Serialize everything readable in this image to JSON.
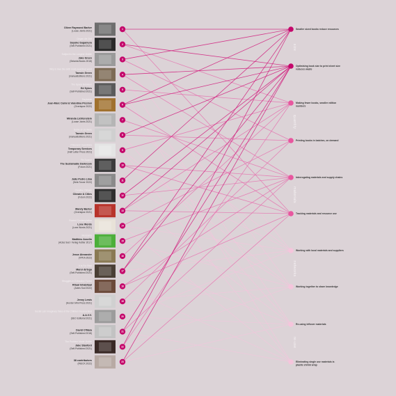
{
  "colors": {
    "background": "#dcd3d7",
    "edge_strong": "#d11e7d",
    "edge_medium": "#e575b0",
    "edge_light": "#f2c6dc",
    "node_dark": "#c4086b",
    "node_mid": "#e8579f",
    "node_light": "#f5c5dc"
  },
  "books": [
    {
      "n": "1",
      "author": "Oliver Raymond Barker",
      "pub": "(Loose Joints 2021)",
      "title": "",
      "img": "#6e6e6e"
    },
    {
      "n": "2",
      "author": "Soyoko Sugamura",
      "pub": "(Self-Published 2021)",
      "title": "Gegen die Zeit",
      "img": "#2a2a2a"
    },
    {
      "n": "3",
      "author": "Jake Green",
      "pub": "(Setanta Books 2018)",
      "title": "Subject to the Longest Visible",
      "img": "#9a9a9a"
    },
    {
      "n": "4",
      "author": "Tamsin Green",
      "pub": "(manualEditions 2021)",
      "title": "Why is love the sixth most-searched word",
      "img": "#7d6b55"
    },
    {
      "n": "5",
      "author": "Ed Sykes",
      "pub": "(Self-Published 2021)",
      "title": "The Space Between",
      "img": "#5a5a5a"
    },
    {
      "n": "6",
      "author": "Jean-Marc Caimi & Valentina Piccinni",
      "pub": "(Overlapse 2022)",
      "title": "Daybreak",
      "img": "#a0712e"
    },
    {
      "n": "7",
      "author": "Miranda Lichtenstein",
      "pub": "(Loose Joints 2021)",
      "title": "",
      "img": "#b5b5b5"
    },
    {
      "n": "8",
      "author": "Tamsin Green",
      "pub": "(manualEditions 2021)",
      "title": "Some of Us Were",
      "img": "#cfcfcf"
    },
    {
      "n": "9",
      "author": "Temporary Services",
      "pub": "(Half Letter Press 2021)",
      "title": "Prisoners' Inventions",
      "img": "#e4e4e4"
    },
    {
      "n": "10",
      "author": "The Sustainable Darkroom",
      "pub": "(Fotum 2021)",
      "title": "Re-Source",
      "img": "#3c3c3c"
    },
    {
      "n": "11",
      "author": "João Pedro Lima",
      "pub": "(Setà Torcer 2022)",
      "title": "",
      "img": "#8a8a8a"
    },
    {
      "n": "12",
      "author": "Climate & Cities",
      "pub": "(Fotum 2022)",
      "title": "Creative Climate",
      "img": "#2f2f2f"
    },
    {
      "n": "13",
      "author": "Mandy Barker",
      "pub": "(Overlapse 2021)",
      "title": "",
      "img": "#b8332b"
    },
    {
      "n": "14",
      "author": "Lone Words",
      "pub": "(Lone Words 2021)",
      "title": "Rooted Contemplation",
      "img": "#e8e2d8"
    },
    {
      "n": "15",
      "author": "Matthieu Asselin",
      "pub": "(Actes Sud / Verlag Kettler 2017)",
      "title": "Monsanto",
      "img": "#4caf3a"
    },
    {
      "n": "16",
      "author": "Jesse Alexander",
      "pub": "(VPKA 2022)",
      "title": "",
      "img": "#8a7a54"
    },
    {
      "n": "17",
      "author": "Maren Ertega",
      "pub": "(Self-Published 2021)",
      "title": "It is For Real",
      "img": "#4a3f35"
    },
    {
      "n": "18",
      "author": "Ritual Inhabitual",
      "pub": "(Actes Sud 2022)",
      "title": "Struggles in Extractive Forest",
      "img": "#6b4a3a"
    },
    {
      "n": "19",
      "author": "Jenny Lewis",
      "pub": "(Hoxton Mini Press 2021)",
      "title": "",
      "img": "#d0d0d0"
    },
    {
      "n": "20",
      "author": "A.A.V.V.",
      "pub": "(SEO Editorial 2021)",
      "title": "Social Lab: Imaginary Tales of the Children Incarcerated",
      "img": "#9c9c9c"
    },
    {
      "n": "21",
      "author": "David O'Mara",
      "pub": "(Self-Published 2018)",
      "title": "",
      "img": "#c2c2c2"
    },
    {
      "n": "22",
      "author": "Jake Stanford",
      "pub": "(Self-Published 2021)",
      "title": "The Problem Made Visible",
      "img": "#3a2a26"
    },
    {
      "n": "23",
      "author": "38 contributors",
      "pub": "(INECK 2022)",
      "title": "",
      "img": "#b8aaa4"
    }
  ],
  "strategies": [
    {
      "label": "Smaller sized books reduce resources",
      "category": "size",
      "tone": "dark"
    },
    {
      "label": "Optimising book size to print sheet size reduces waste",
      "category": "size",
      "tone": "dark"
    },
    {
      "label": "Making fewer books, smaller edition numbers",
      "category": "quantity",
      "tone": "mid"
    },
    {
      "label": "Printing books in batches, on demand",
      "category": "quantity",
      "tone": "mid"
    },
    {
      "label": "Interrogating materials and supply chains",
      "category": "materials",
      "tone": "mid"
    },
    {
      "label": "Tracking materials and resource use",
      "category": "materials",
      "tone": "mid"
    },
    {
      "label": "Working with local materials and suppliers",
      "category": "networks",
      "tone": "light"
    },
    {
      "label": "Working together to share knowledge",
      "category": "networks",
      "tone": "light"
    },
    {
      "label": "Re-using leftover materials",
      "category": "re-use",
      "tone": "light"
    },
    {
      "label": "Eliminating single use materials ie. plastic shrink wrap",
      "category": "re-use",
      "tone": "light"
    }
  ],
  "category_labels": [
    "size",
    "quantity",
    "materials",
    "networks",
    "re-use"
  ],
  "connections": [
    [
      0,
      0
    ],
    [
      0,
      5
    ],
    [
      1,
      1
    ],
    [
      1,
      2
    ],
    [
      1,
      6
    ],
    [
      2,
      0
    ],
    [
      2,
      3
    ],
    [
      2,
      7
    ],
    [
      3,
      1
    ],
    [
      3,
      4
    ],
    [
      3,
      8
    ],
    [
      4,
      2
    ],
    [
      4,
      9
    ],
    [
      5,
      0
    ],
    [
      5,
      1
    ],
    [
      5,
      5
    ],
    [
      6,
      4
    ],
    [
      6,
      6
    ],
    [
      7,
      1
    ],
    [
      7,
      3
    ],
    [
      7,
      8
    ],
    [
      8,
      2
    ],
    [
      8,
      7
    ],
    [
      8,
      9
    ],
    [
      9,
      4
    ],
    [
      9,
      5
    ],
    [
      9,
      6
    ],
    [
      10,
      0
    ],
    [
      10,
      7
    ],
    [
      11,
      1
    ],
    [
      11,
      4
    ],
    [
      11,
      8
    ],
    [
      12,
      1
    ],
    [
      12,
      2
    ],
    [
      12,
      5
    ],
    [
      13,
      3
    ],
    [
      13,
      6
    ],
    [
      13,
      9
    ],
    [
      14,
      4
    ],
    [
      14,
      7
    ],
    [
      15,
      2
    ],
    [
      15,
      8
    ],
    [
      16,
      0
    ],
    [
      16,
      1
    ],
    [
      16,
      6
    ],
    [
      17,
      4
    ],
    [
      17,
      5
    ],
    [
      17,
      9
    ],
    [
      18,
      3
    ],
    [
      18,
      7
    ],
    [
      19,
      6
    ],
    [
      19,
      8
    ],
    [
      20,
      1
    ],
    [
      20,
      4
    ],
    [
      20,
      9
    ],
    [
      21,
      0
    ],
    [
      21,
      2
    ],
    [
      21,
      7
    ],
    [
      22,
      1
    ],
    [
      22,
      5
    ],
    [
      22,
      8
    ]
  ]
}
